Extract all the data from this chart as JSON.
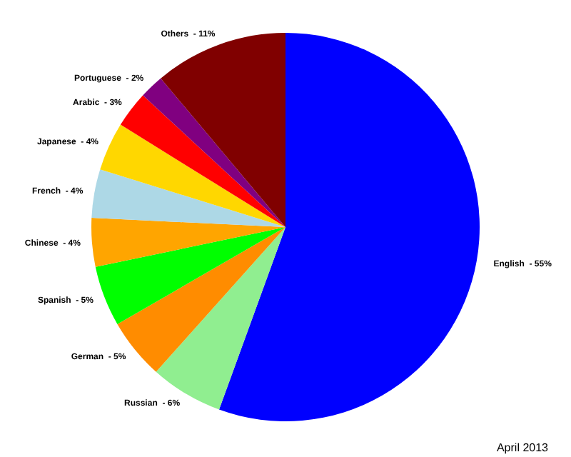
{
  "chart_data": {
    "type": "pie",
    "categories": [
      "English",
      "Russian",
      "German",
      "Spanish",
      "Chinese",
      "French",
      "Japanese",
      "Arabic",
      "Portuguese",
      "Others"
    ],
    "values": [
      55,
      6,
      5,
      5,
      4,
      4,
      4,
      3,
      2,
      11
    ],
    "colors": [
      "#0000ff",
      "#90ee90",
      "#ff8c00",
      "#00ff00",
      "#ffa500",
      "#add8e6",
      "#ffd700",
      "#ff0000",
      "#800080",
      "#800000"
    ],
    "value_labels": [
      "55%",
      "6%",
      "5%",
      "5%",
      "4%",
      "4%",
      "4%",
      "3%",
      "2%",
      "11%"
    ],
    "legend": false,
    "annotations": [
      "April 2013"
    ]
  }
}
